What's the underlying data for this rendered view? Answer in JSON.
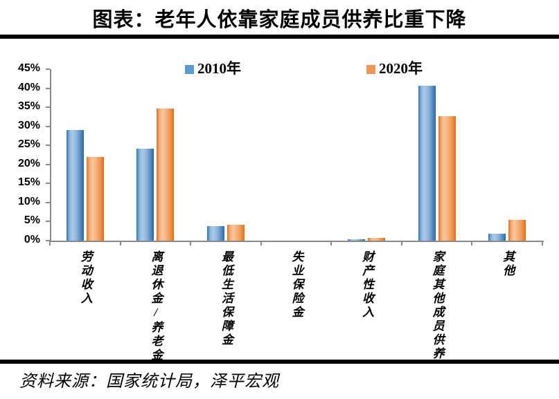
{
  "page": {
    "title": "图表：老年人依靠家庭成员供养比重下降",
    "source": "资料来源：国家统计局，泽平宏观"
  },
  "colors": {
    "series_2010": "#5D9BD3",
    "series_2020": "#F0945A",
    "axis": "#8a8a8a",
    "rule": "#000000"
  },
  "chart_data": {
    "type": "bar",
    "title": "图表：老年人依靠家庭成员供养比重下降",
    "categories": [
      "劳动收入",
      "离退休金/养老金",
      "最低生活保障金",
      "失业保险金",
      "财产性收入",
      "家庭其他成员供养",
      "其他"
    ],
    "series": [
      {
        "name": "2010年",
        "color": "#5D9BD3",
        "values": [
          29.1,
          24.1,
          3.9,
          0,
          0.4,
          40.7,
          1.8
        ]
      },
      {
        "name": "2020年",
        "color": "#F0945A",
        "values": [
          22.0,
          34.7,
          4.2,
          0,
          0.8,
          32.7,
          5.5
        ]
      }
    ],
    "xlabel": "",
    "ylabel": "",
    "ylim": [
      0,
      45
    ],
    "ytick_step": 5,
    "ytick_labels": [
      "0%",
      "5%",
      "10%",
      "15%",
      "20%",
      "25%",
      "30%",
      "35%",
      "40%",
      "45%"
    ],
    "legend_position": "top",
    "grid": false,
    "unit": "percent"
  }
}
